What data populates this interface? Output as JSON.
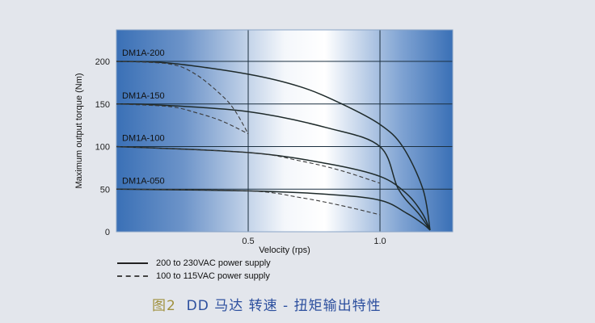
{
  "chart_data": {
    "type": "line",
    "xlabel": "Velocity (rps)",
    "ylabel": "Maximum output torque (Nm)",
    "xlim": [
      0,
      1.276
    ],
    "ylim": [
      0,
      237
    ],
    "xticks": [
      0.5,
      1.0
    ],
    "xtick_labels": [
      "0.5",
      "1.0"
    ],
    "yticks": [
      0,
      50,
      100,
      150,
      200
    ],
    "ytick_labels": [
      "0",
      "50",
      "100",
      "150",
      "200"
    ],
    "grid": true,
    "legend_position": "bottom-left",
    "legend": [
      {
        "label": "200 to 230VAC power supply",
        "style": "solid"
      },
      {
        "label": "100 to 115VAC power supply",
        "style": "dashed"
      }
    ],
    "annotations": [
      {
        "text": "DM1A-200",
        "y": 200
      },
      {
        "text": "DM1A-150",
        "y": 150
      },
      {
        "text": "DM1A-100",
        "y": 100
      },
      {
        "text": "DM1A-050",
        "y": 50
      }
    ],
    "series": [
      {
        "model": "DM1A-200",
        "style": "solid",
        "x": [
          0,
          0.2,
          0.5,
          0.7,
          0.856,
          1.0,
          1.086,
          1.163,
          1.19
        ],
        "y": [
          200,
          198,
          185,
          170,
          150,
          126,
          100,
          50,
          2
        ]
      },
      {
        "model": "DM1A-150",
        "style": "solid",
        "x": [
          0,
          0.15,
          0.5,
          0.8,
          1.0,
          1.07,
          1.15,
          1.19
        ],
        "y": [
          150,
          149,
          141,
          122,
          100,
          50,
          20,
          2
        ]
      },
      {
        "model": "DM1A-100",
        "style": "solid",
        "x": [
          0,
          0.5,
          0.8,
          1.0,
          1.1,
          1.16,
          1.19
        ],
        "y": [
          100,
          93,
          80,
          65,
          45,
          22,
          2
        ]
      },
      {
        "model": "DM1A-050",
        "style": "solid",
        "x": [
          0,
          0.5,
          0.8,
          1.0,
          1.1,
          1.16,
          1.19
        ],
        "y": [
          50,
          48,
          44,
          37,
          22,
          10,
          2
        ]
      },
      {
        "model": "DM1A-200",
        "style": "dashed",
        "x": [
          0,
          0.2,
          0.3,
          0.4,
          0.45,
          0.5
        ],
        "y": [
          200,
          197,
          185,
          160,
          142,
          115
        ]
      },
      {
        "model": "DM1A-150",
        "style": "dashed",
        "x": [
          0,
          0.2,
          0.3,
          0.4,
          0.5
        ],
        "y": [
          150,
          147,
          140,
          130,
          115
        ]
      },
      {
        "model": "DM1A-100",
        "style": "dashed",
        "x": [
          0,
          0.5,
          0.7,
          0.85,
          1.0
        ],
        "y": [
          100,
          93,
          83,
          72,
          57
        ]
      },
      {
        "model": "DM1A-050",
        "style": "dashed",
        "x": [
          0,
          0.5,
          0.7,
          0.85,
          1.0
        ],
        "y": [
          50,
          48,
          40,
          31,
          20
        ]
      }
    ],
    "colors": {
      "plot_edge": "#3a70b6",
      "plot_center": "#ffffff",
      "line": "#1e2a2a",
      "grid": "#1c3040"
    }
  },
  "caption": {
    "figure": "图2",
    "text": "DD 马达  转速 - 扭矩输出特性"
  }
}
